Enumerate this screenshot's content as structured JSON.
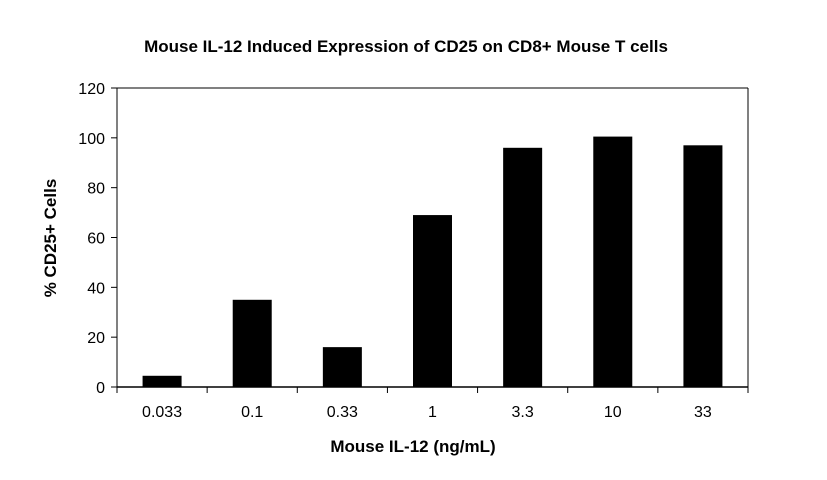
{
  "chart_data": {
    "type": "bar",
    "title": "Mouse IL-12 Induced Expression of CD25 on CD8+ Mouse T cells",
    "xlabel": "Mouse IL-12 (ng/mL)",
    "ylabel": "% CD25+ Cells",
    "categories": [
      "0.033",
      "0.1",
      "0.33",
      "1",
      "3.3",
      "10",
      "33"
    ],
    "values": [
      4.5,
      35,
      16,
      69,
      96,
      100.5,
      97
    ],
    "ylim": [
      0,
      120
    ],
    "yticks": [
      0,
      20,
      40,
      60,
      80,
      100,
      120
    ],
    "grid": false,
    "bar_color": "#000000"
  }
}
